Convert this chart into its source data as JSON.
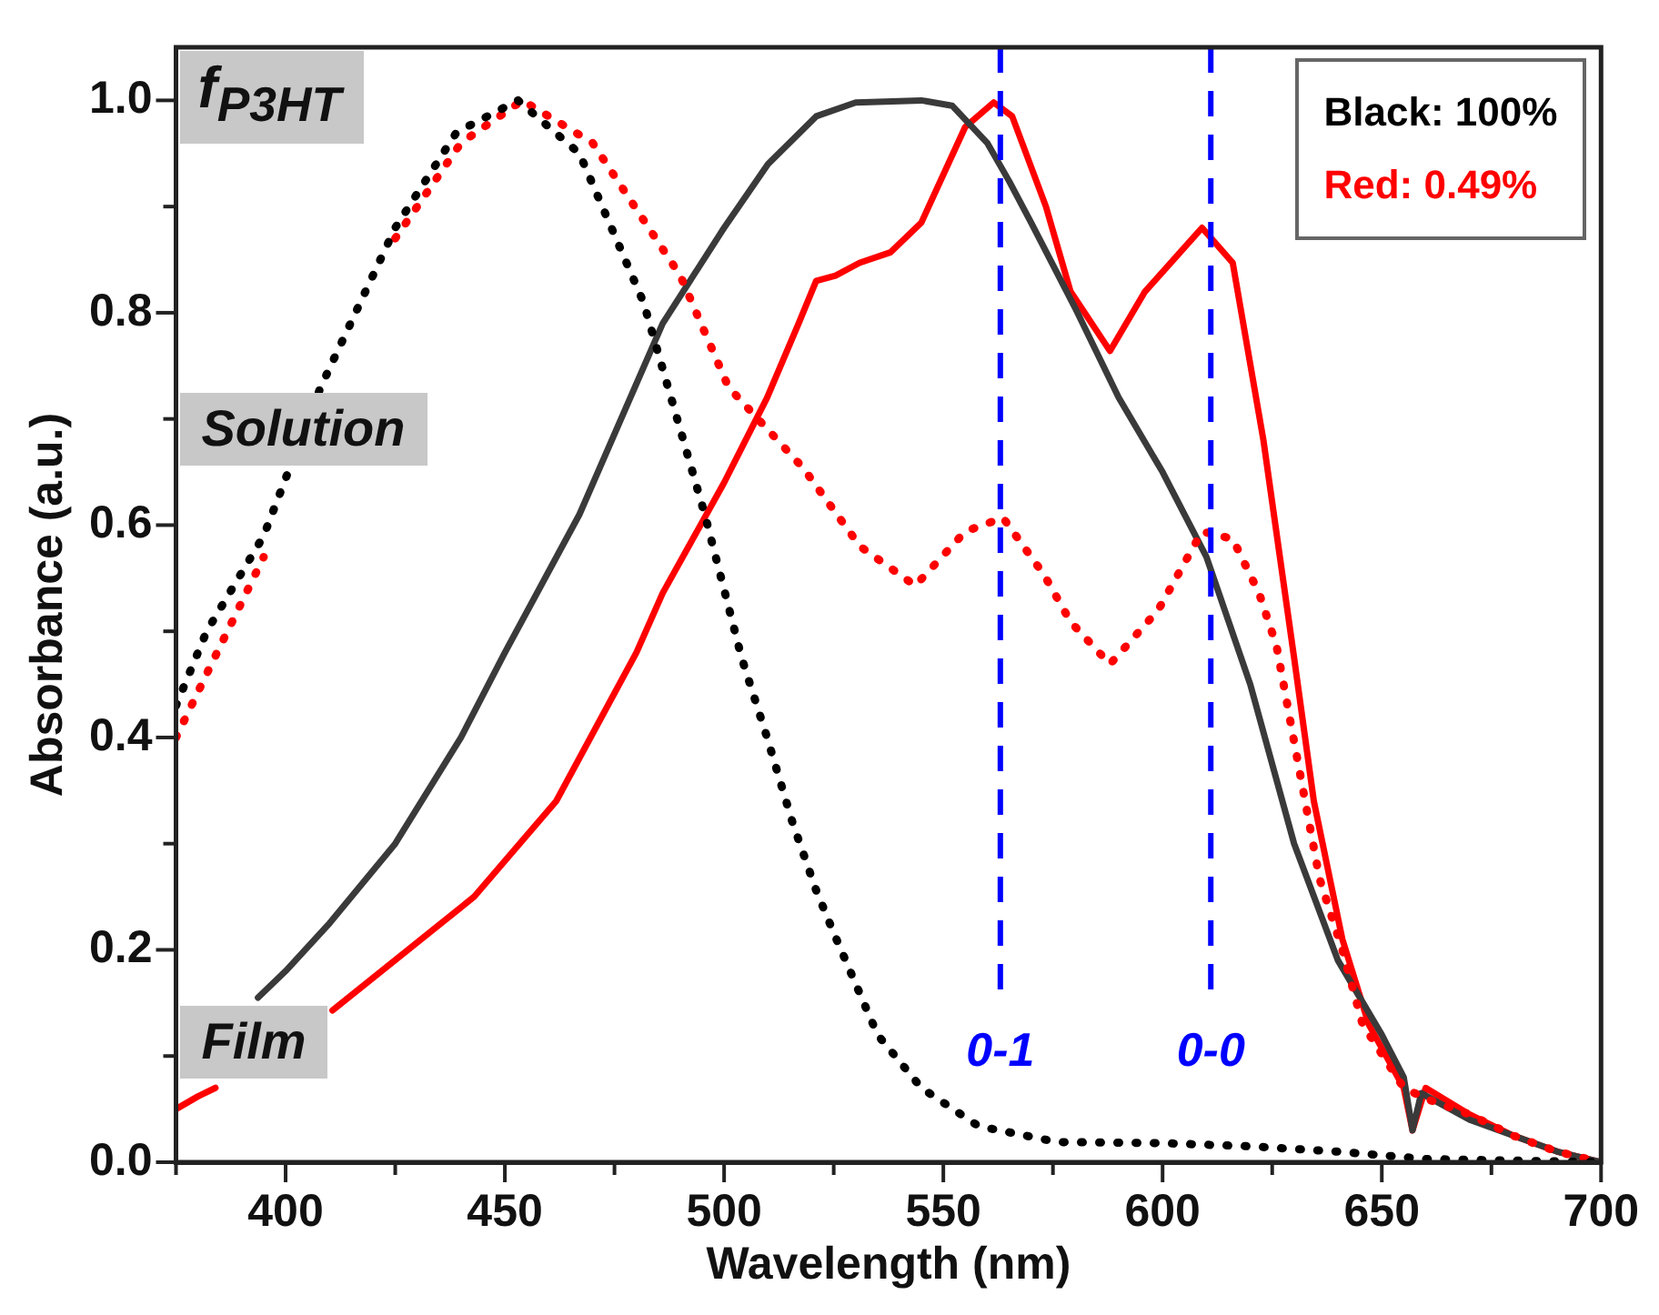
{
  "chart_data": {
    "type": "line",
    "xlabel": "Wavelength (nm)",
    "ylabel": "Absorbance (a.u.)",
    "xlim": [
      375,
      700
    ],
    "ylim": [
      0,
      1.05
    ],
    "xticks": [
      {
        "value": 375,
        "label": null
      },
      400,
      {
        "value": 425,
        "label": null
      },
      450,
      {
        "value": 475,
        "label": null
      },
      500,
      {
        "value": 525,
        "label": null
      },
      550,
      {
        "value": 575,
        "label": null
      },
      600,
      {
        "value": 625,
        "label": null
      },
      650,
      {
        "value": 675,
        "label": null
      },
      700
    ],
    "yticks": [
      {
        "value": 0,
        "label": "0.0"
      },
      {
        "value": 0.1,
        "label": null
      },
      0.2,
      {
        "value": 0.3,
        "label": null
      },
      0.4,
      {
        "value": 0.5,
        "label": null
      },
      0.6,
      {
        "value": 0.7,
        "label": null
      },
      0.8,
      {
        "value": 0.9,
        "label": null
      },
      {
        "value": 1,
        "label": "1.0"
      }
    ],
    "grid": false,
    "legend": false,
    "marker": "none",
    "series": [
      {
        "color": "#000000",
        "line_style": "dotted",
        "x": [
          375,
          382,
          395,
          408,
          425,
          439,
          453,
          467,
          481.6,
          495.6,
          504,
          509.8,
          515.6,
          521,
          525,
          535,
          545,
          558,
          576,
          600,
          620,
          640,
          660,
          700
        ],
        "values": [
          0.43,
          0.5,
          0.59,
          0.73,
          0.88,
          0.97,
          1.0,
          0.95,
          0.81,
          0.61,
          0.475,
          0.4,
          0.32,
          0.256,
          0.216,
          0.12,
          0.07,
          0.034,
          0.019,
          0.018,
          0.015,
          0.01,
          0.003,
          0.0
        ]
      },
      {
        "color": "#ff0000",
        "line_style": "dotted",
        "x": [
          375,
          382,
          395,
          408,
          425,
          440,
          454,
          470,
          490,
          501,
          518,
          531,
          543.6,
          555,
          563.6,
          573,
          579,
          588,
          599,
          609,
          616,
          622,
          626,
          630,
          635.8,
          641,
          645.6,
          655,
          660,
          670,
          680,
          690,
          700
        ],
        "values": [
          0.4,
          0.46,
          0.57,
          null,
          0.87,
          0.96,
          1.0,
          0.96,
          0.835,
          0.73,
          0.654,
          0.58,
          0.543,
          0.594,
          0.607,
          0.553,
          0.509,
          0.469,
          0.52,
          0.594,
          0.587,
          0.536,
          0.486,
          0.396,
          0.267,
          0.2,
          0.13,
          0.07,
          0.06,
          0.045,
          0.025,
          0.01,
          0.0
        ]
      },
      {
        "color": "#3a3a3a",
        "line_style": "solid",
        "x": [
          393.7,
          400,
          410,
          425,
          440,
          450,
          467,
          486,
          500,
          510,
          521,
          530,
          545,
          552,
          560,
          565,
          570,
          580,
          590,
          600,
          610,
          620,
          630,
          640,
          650,
          655,
          657,
          659,
          670,
          680,
          690,
          700
        ],
        "values": [
          0.155,
          0.18,
          0.225,
          0.3,
          0.4,
          0.48,
          0.61,
          0.79,
          0.88,
          0.94,
          0.985,
          0.998,
          1.0,
          0.995,
          0.96,
          0.924,
          0.885,
          0.805,
          0.72,
          0.65,
          0.57,
          0.45,
          0.3,
          0.19,
          0.12,
          0.08,
          0.03,
          0.065,
          0.04,
          0.025,
          0.01,
          0.0
        ]
      },
      {
        "color": "#ff0000",
        "line_style": "solid",
        "x": [
          375,
          380,
          384,
          390,
          410.7,
          443,
          461.7,
          480,
          486,
          500,
          509.8,
          517,
          521,
          525.4,
          530.9,
          538,
          545,
          555,
          561.5,
          565.7,
          573.4,
          579,
          588,
          596,
          609,
          616,
          623,
          630,
          634.5,
          641,
          647,
          655,
          657,
          660,
          670,
          680,
          690,
          700
        ],
        "values": [
          0.05,
          0.062,
          0.07,
          null,
          0.143,
          0.25,
          0.34,
          0.48,
          0.536,
          0.64,
          0.72,
          0.79,
          0.83,
          0.835,
          0.847,
          0.857,
          0.885,
          0.975,
          0.998,
          0.985,
          0.9,
          0.82,
          0.764,
          0.82,
          0.88,
          0.847,
          0.68,
          0.475,
          0.34,
          0.21,
          0.13,
          0.07,
          0.03,
          0.07,
          0.045,
          0.025,
          0.01,
          0.0
        ]
      }
    ],
    "ref_lines": [
      {
        "axis": "x",
        "value": 563,
        "color": "#0000ff",
        "line_style": "dashed"
      },
      {
        "axis": "x",
        "value": 611,
        "color": "#0000ff",
        "line_style": "dashed"
      }
    ],
    "annotations": [
      "f$_{P3HT}$",
      "Solution",
      "Film",
      "Black: 100%",
      "Red: 0.49%",
      "0-1",
      "0-0"
    ]
  }
}
